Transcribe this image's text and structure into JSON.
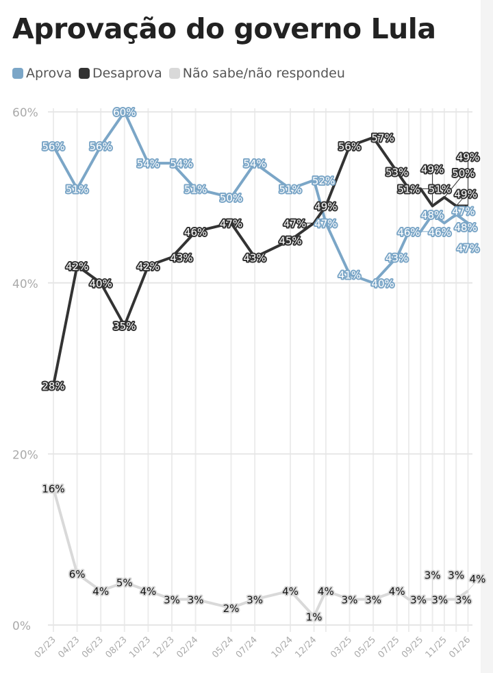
{
  "chart_data": {
    "type": "line",
    "title": "Aprovação do governo Lula",
    "xlabel": "",
    "ylabel": "",
    "ylim": [
      0,
      60
    ],
    "yticks": [
      "0%",
      "20%",
      "40%",
      "60%"
    ],
    "ytick_values": [
      0,
      20,
      40,
      60
    ],
    "grid": true,
    "legend_position": "top-left",
    "x_labels": [
      "02/23",
      "04/23",
      "06/23",
      "08/23",
      "10/23",
      "12/23",
      "02/24",
      "05/24",
      "07/24",
      "10/24",
      "12/24",
      "03/25",
      "05/25",
      "07/25",
      "09/25",
      "11/25",
      "01/26"
    ],
    "x_label_months": [
      0,
      2,
      4,
      6,
      8,
      10,
      12,
      15,
      17,
      20,
      22,
      25,
      27,
      29,
      31,
      33,
      35
    ],
    "x_months": [
      0,
      2,
      4,
      6,
      8,
      10,
      12,
      15,
      17,
      20,
      22,
      23,
      25,
      27,
      29,
      30,
      31,
      32,
      33,
      34,
      35
    ],
    "series": [
      {
        "name": "Aprova",
        "color": "#7ba6c7",
        "values": [
          56,
          51,
          56,
          60,
          54,
          54,
          51,
          50,
          54,
          51,
          52,
          47,
          41,
          40,
          43,
          46,
          46,
          48,
          47,
          48,
          47
        ]
      },
      {
        "name": "Desaprova",
        "color": "#333333",
        "values": [
          28,
          42,
          40,
          35,
          42,
          43,
          46,
          47,
          43,
          45,
          47,
          49,
          56,
          57,
          53,
          51,
          51,
          49,
          50,
          49,
          49
        ]
      },
      {
        "name": "Não sabe/não respondeu",
        "color": "#d9d9d9",
        "values": [
          16,
          6,
          4,
          5,
          4,
          3,
          3,
          2,
          3,
          4,
          1,
          4,
          3,
          3,
          4,
          3,
          3,
          3,
          3,
          3,
          4
        ]
      }
    ]
  }
}
